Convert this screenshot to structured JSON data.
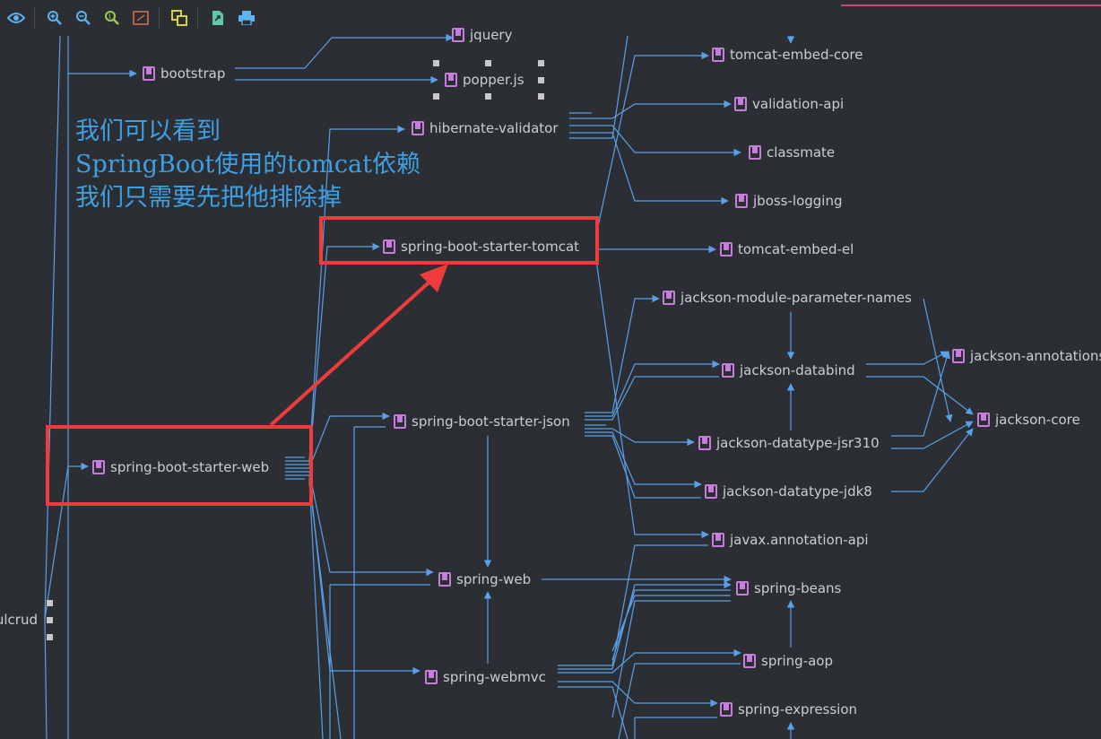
{
  "toolbar": {
    "buttons": [
      {
        "name": "show-eye-icon",
        "color": "#5fb3f0"
      },
      {
        "name": "zoom-in-icon",
        "color": "#5fb3f0"
      },
      {
        "name": "zoom-out-icon",
        "color": "#5fb3f0"
      },
      {
        "name": "actual-size-icon",
        "color": "#9ccf50"
      },
      {
        "name": "fit-content-icon",
        "color": "#d46a4a"
      },
      {
        "name": "layout-icon",
        "color": "#d7d238"
      },
      {
        "name": "export-icon",
        "color": "#5fc9a8"
      },
      {
        "name": "print-icon",
        "color": "#5fb3f0"
      }
    ]
  },
  "colors": {
    "background": "#2b2f34",
    "edge": "#5aa0e8",
    "highlight": "#ef3b3b",
    "annotation": "#3f9fe3",
    "jar_icon": "#c77ddb"
  },
  "nodes": {
    "jquery": "jquery",
    "bootstrap": "bootstrap",
    "popperjs": "popper.js",
    "hibernate_validator": "hibernate-validator",
    "spring_boot_starter_tomcat": "spring-boot-starter-tomcat",
    "spring_boot_starter_web": "spring-boot-starter-web",
    "spring_boot_starter_json": "spring-boot-starter-json",
    "spring_web": "spring-web",
    "spring_webmvc": "spring-webmvc",
    "tomcat_embed_core": "tomcat-embed-core",
    "validation_api": "validation-api",
    "classmate": "classmate",
    "jboss_logging": "jboss-logging",
    "tomcat_embed_el": "tomcat-embed-el",
    "jackson_module_parameter_names": "jackson-module-parameter-names",
    "jackson_annotations": "jackson-annotations",
    "jackson_databind": "jackson-databind",
    "jackson_core": "jackson-core",
    "jackson_datatype_jsr310": "jackson-datatype-jsr310",
    "jackson_datatype_jdk8": "jackson-datatype-jdk8",
    "javax_annotation_api": "javax.annotation-api",
    "spring_beans": "spring-beans",
    "spring_aop": "spring-aop",
    "spring_expression": "spring-expression",
    "root_project": "restfulcrud"
  },
  "annotation": {
    "line1": "我们可以看到",
    "line2": "SpringBoot使用的tomcat依赖",
    "line3": "我们只需要先把他排除掉"
  }
}
